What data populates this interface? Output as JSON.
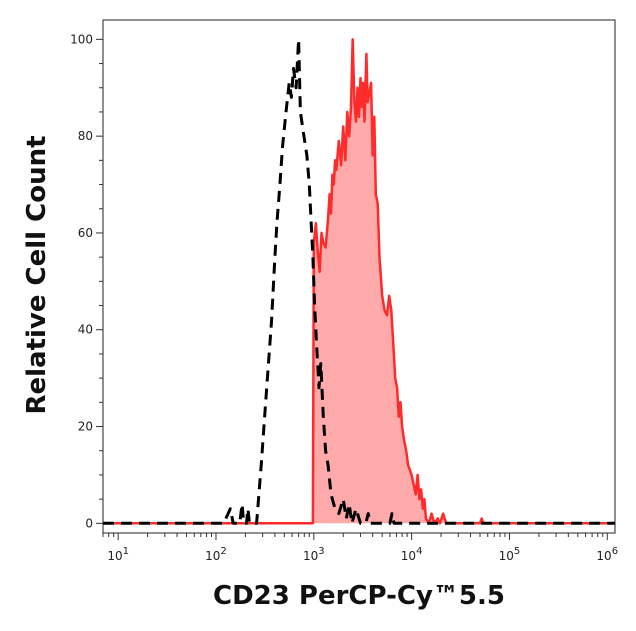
{
  "chart_data": {
    "type": "area",
    "xlabel": "CD23 PerCP-Cy™5.5",
    "ylabel": "Relative Cell Count",
    "x_scale": "log",
    "xlim": [
      7,
      1200000
    ],
    "ylim": [
      -2,
      104
    ],
    "x_ticks": [
      {
        "value": 10,
        "base": "10",
        "exp": "1"
      },
      {
        "value": 100,
        "base": "10",
        "exp": "2"
      },
      {
        "value": 1000,
        "base": "10",
        "exp": "3"
      },
      {
        "value": 10000,
        "base": "10",
        "exp": "4"
      },
      {
        "value": 100000,
        "base": "10",
        "exp": "5"
      },
      {
        "value": 1000000,
        "base": "10",
        "exp": "6"
      }
    ],
    "y_ticks": [
      {
        "value": 0,
        "label": "0"
      },
      {
        "value": 20,
        "label": "20"
      },
      {
        "value": 40,
        "label": "40"
      },
      {
        "value": 60,
        "label": "60"
      },
      {
        "value": 80,
        "label": "80"
      },
      {
        "value": 100,
        "label": "100"
      }
    ],
    "grid": false,
    "series": [
      {
        "style": "dashed",
        "color": "#000000",
        "fill": null,
        "points": [
          [
            7,
            0
          ],
          [
            120,
            0
          ],
          [
            140,
            3
          ],
          [
            150,
            0
          ],
          [
            175,
            0
          ],
          [
            185,
            4
          ],
          [
            192,
            0
          ],
          [
            205,
            0
          ],
          [
            212,
            3
          ],
          [
            220,
            0
          ],
          [
            260,
            0
          ],
          [
            290,
            12
          ],
          [
            330,
            28
          ],
          [
            370,
            42
          ],
          [
            400,
            55
          ],
          [
            420,
            62
          ],
          [
            450,
            70
          ],
          [
            480,
            78
          ],
          [
            520,
            85
          ],
          [
            560,
            91
          ],
          [
            590,
            88
          ],
          [
            620,
            94
          ],
          [
            660,
            90
          ],
          [
            700,
            100
          ],
          [
            730,
            85
          ],
          [
            780,
            81
          ],
          [
            850,
            76
          ],
          [
            900,
            70
          ],
          [
            940,
            62
          ],
          [
            980,
            55
          ],
          [
            1020,
            45
          ],
          [
            1080,
            35
          ],
          [
            1130,
            28
          ],
          [
            1180,
            33
          ],
          [
            1250,
            22
          ],
          [
            1320,
            15
          ],
          [
            1400,
            12
          ],
          [
            1500,
            6
          ],
          [
            1650,
            3
          ],
          [
            1800,
            2
          ],
          [
            2000,
            5
          ],
          [
            2150,
            1
          ],
          [
            2300,
            4
          ],
          [
            2450,
            0
          ],
          [
            2700,
            3
          ],
          [
            3000,
            0
          ],
          [
            3400,
            0
          ],
          [
            3600,
            2
          ],
          [
            3800,
            0
          ],
          [
            6000,
            0
          ],
          [
            6300,
            2
          ],
          [
            6600,
            0
          ],
          [
            1200000,
            0
          ]
        ]
      },
      {
        "style": "solid",
        "color": "#ff2a2a",
        "fill": "#ffaaaa",
        "points": [
          [
            7,
            0
          ],
          [
            980,
            0
          ],
          [
            1000,
            58
          ],
          [
            1050,
            62
          ],
          [
            1100,
            56
          ],
          [
            1150,
            52
          ],
          [
            1200,
            60
          ],
          [
            1250,
            58
          ],
          [
            1320,
            57
          ],
          [
            1400,
            63
          ],
          [
            1450,
            68
          ],
          [
            1500,
            64
          ],
          [
            1550,
            72
          ],
          [
            1600,
            70
          ],
          [
            1650,
            75
          ],
          [
            1700,
            73
          ],
          [
            1800,
            79
          ],
          [
            1900,
            74
          ],
          [
            2000,
            82
          ],
          [
            2100,
            75
          ],
          [
            2200,
            85
          ],
          [
            2300,
            80
          ],
          [
            2400,
            86
          ],
          [
            2500,
            100
          ],
          [
            2600,
            87
          ],
          [
            2700,
            83
          ],
          [
            2800,
            90
          ],
          [
            2900,
            84
          ],
          [
            3000,
            92
          ],
          [
            3100,
            86
          ],
          [
            3200,
            91
          ],
          [
            3300,
            83
          ],
          [
            3450,
            97
          ],
          [
            3550,
            87
          ],
          [
            3700,
            89
          ],
          [
            3850,
            91
          ],
          [
            4000,
            76
          ],
          [
            4150,
            84
          ],
          [
            4300,
            68
          ],
          [
            4500,
            66
          ],
          [
            4700,
            55
          ],
          [
            5000,
            47
          ],
          [
            5300,
            44
          ],
          [
            5600,
            43
          ],
          [
            5900,
            47
          ],
          [
            6200,
            44
          ],
          [
            6500,
            37
          ],
          [
            6800,
            30
          ],
          [
            7100,
            28
          ],
          [
            7400,
            22
          ],
          [
            7700,
            25
          ],
          [
            8000,
            20
          ],
          [
            8400,
            17
          ],
          [
            8800,
            15
          ],
          [
            9200,
            12
          ],
          [
            9600,
            11
          ],
          [
            10000,
            10
          ],
          [
            10500,
            8
          ],
          [
            11000,
            6
          ],
          [
            11500,
            10
          ],
          [
            12000,
            5
          ],
          [
            12500,
            7
          ],
          [
            13000,
            3
          ],
          [
            13500,
            5
          ],
          [
            14000,
            1
          ],
          [
            15000,
            0
          ],
          [
            16000,
            2
          ],
          [
            17000,
            0
          ],
          [
            18500,
            1
          ],
          [
            19500,
            0
          ],
          [
            21000,
            2
          ],
          [
            22500,
            0
          ],
          [
            50000,
            0
          ],
          [
            52000,
            1
          ],
          [
            54000,
            0
          ],
          [
            1200000,
            0
          ]
        ]
      }
    ]
  }
}
